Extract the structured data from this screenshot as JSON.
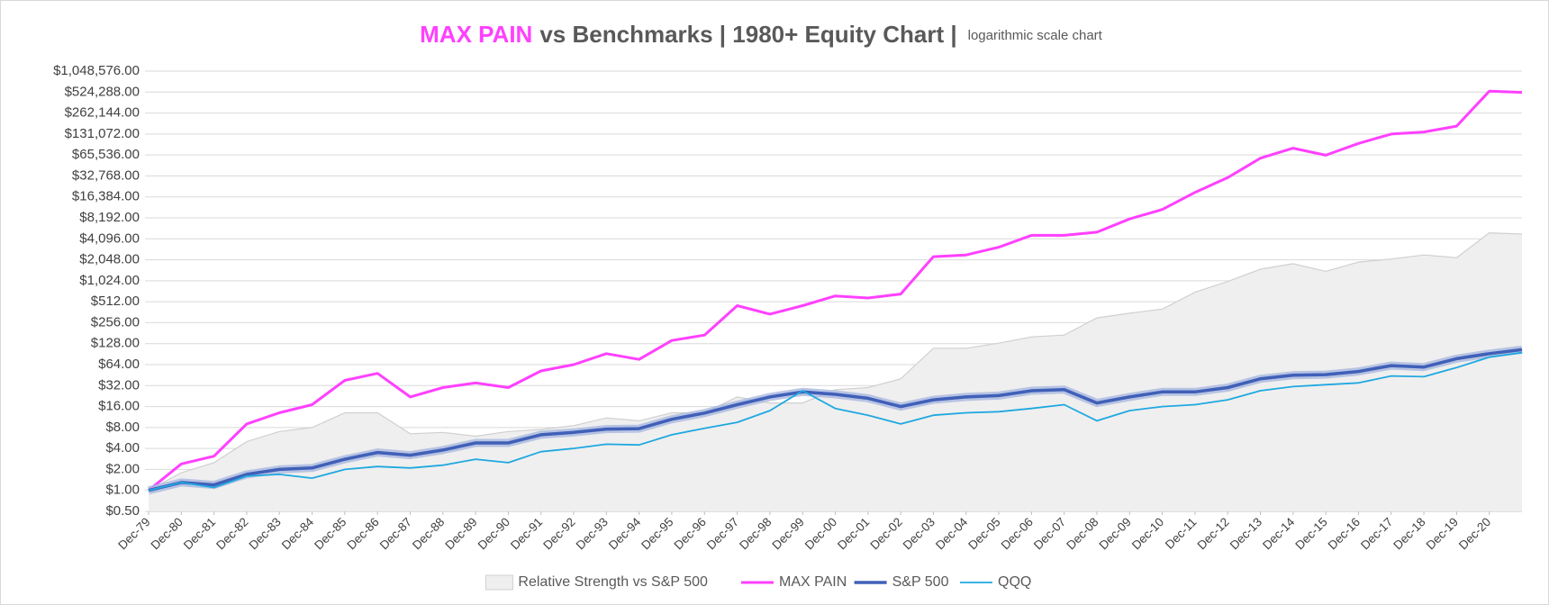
{
  "chart_data": {
    "type": "line",
    "title_highlight": "MAX PAIN",
    "title": "vs Benchmarks | 1980+ Equity Chart |",
    "subtitle": "logarithmic scale chart",
    "yscale": "log",
    "grid": true,
    "legend": "bottom",
    "categories": [
      "Dec-79",
      "Dec-80",
      "Dec-81",
      "Dec-82",
      "Dec-83",
      "Dec-84",
      "Dec-85",
      "Dec-86",
      "Dec-87",
      "Dec-88",
      "Dec-89",
      "Dec-90",
      "Dec-91",
      "Dec-92",
      "Dec-93",
      "Dec-94",
      "Dec-95",
      "Dec-96",
      "Dec-97",
      "Dec-98",
      "Dec-99",
      "Dec-00",
      "Dec-01",
      "Dec-02",
      "Dec-03",
      "Dec-04",
      "Dec-05",
      "Dec-06",
      "Dec-07",
      "Dec-08",
      "Dec-09",
      "Dec-10",
      "Dec-11",
      "Dec-12",
      "Dec-13",
      "Dec-14",
      "Dec-15",
      "Dec-16",
      "Dec-17",
      "Dec-18",
      "Dec-19",
      "Dec-20",
      null
    ],
    "series": [
      {
        "name": "Relative Strength vs S&P 500",
        "kind": "area",
        "color": "#efefef",
        "edge": "#d0d0d0",
        "values": [
          1,
          1.8,
          2.5,
          5,
          7,
          8,
          13,
          13,
          6.5,
          6.8,
          6,
          7,
          7.5,
          8.5,
          11,
          10,
          13,
          13,
          22,
          18,
          18,
          28,
          30,
          40,
          110,
          110,
          130,
          160,
          170,
          300,
          350,
          400,
          700,
          1000,
          1500,
          1800,
          1400,
          1900,
          2100,
          2400,
          2200,
          5000,
          4800
        ]
      },
      {
        "name": "MAX PAIN",
        "kind": "line",
        "color": "#ff40ff",
        "width": 3,
        "values": [
          1,
          2.4,
          3.1,
          9,
          13,
          17,
          38,
          48,
          22,
          30,
          35,
          30,
          52,
          64,
          92,
          76,
          142,
          170,
          450,
          340,
          450,
          620,
          580,
          660,
          2270,
          2400,
          3100,
          4600,
          4600,
          5100,
          7900,
          10800,
          19000,
          31000,
          59000,
          82000,
          65000,
          96000,
          131000,
          140000,
          170000,
          540000,
          520000
        ]
      },
      {
        "name": "S&P 500",
        "kind": "line",
        "color": "#4060b8",
        "width": 3.5,
        "glow": "#a9b8e0",
        "values": [
          1,
          1.3,
          1.2,
          1.7,
          2,
          2.1,
          2.8,
          3.5,
          3.2,
          3.8,
          4.8,
          4.8,
          6.3,
          6.8,
          7.6,
          7.7,
          10.5,
          12.9,
          17,
          22,
          26,
          24,
          21,
          16,
          20,
          22,
          23,
          27,
          28,
          18,
          22,
          26,
          26,
          30,
          40,
          45,
          46,
          51,
          62,
          59,
          78,
          92,
          105
        ]
      },
      {
        "name": "QQQ",
        "kind": "line",
        "color": "#1fa8e0",
        "width": 1.8,
        "values": [
          1,
          1.3,
          1.1,
          1.6,
          1.7,
          1.5,
          2,
          2.2,
          2.1,
          2.3,
          2.8,
          2.5,
          3.6,
          4,
          4.6,
          4.5,
          6.3,
          7.8,
          9.5,
          14,
          27,
          15,
          12,
          9,
          12,
          13,
          13.5,
          15,
          17,
          10,
          14,
          16,
          17,
          20,
          27,
          31,
          33,
          35,
          44,
          43,
          58,
          82,
          95
        ]
      }
    ],
    "ylim": [
      0.5,
      1048576
    ],
    "yticks": [
      {
        "value": 0.5,
        "label": "$0.50"
      },
      {
        "value": 1,
        "label": "$1.00"
      },
      {
        "value": 2,
        "label": "$2.00"
      },
      {
        "value": 4,
        "label": "$4.00"
      },
      {
        "value": 8,
        "label": "$8.00"
      },
      {
        "value": 16,
        "label": "$16.00"
      },
      {
        "value": 32,
        "label": "$32.00"
      },
      {
        "value": 64,
        "label": "$64.00"
      },
      {
        "value": 128,
        "label": "$128.00"
      },
      {
        "value": 256,
        "label": "$256.00"
      },
      {
        "value": 512,
        "label": "$512.00"
      },
      {
        "value": 1024,
        "label": "$1,024.00"
      },
      {
        "value": 2048,
        "label": "$2,048.00"
      },
      {
        "value": 4096,
        "label": "$4,096.00"
      },
      {
        "value": 8192,
        "label": "$8,192.00"
      },
      {
        "value": 16384,
        "label": "$16,384.00"
      },
      {
        "value": 32768,
        "label": "$32,768.00"
      },
      {
        "value": 65536,
        "label": "$65,536.00"
      },
      {
        "value": 131072,
        "label": "$131,072.00"
      },
      {
        "value": 262144,
        "label": "$262,144.00"
      },
      {
        "value": 524288,
        "label": "$524,288.00"
      },
      {
        "value": 1048576,
        "label": "$1,048,576.00"
      }
    ]
  }
}
